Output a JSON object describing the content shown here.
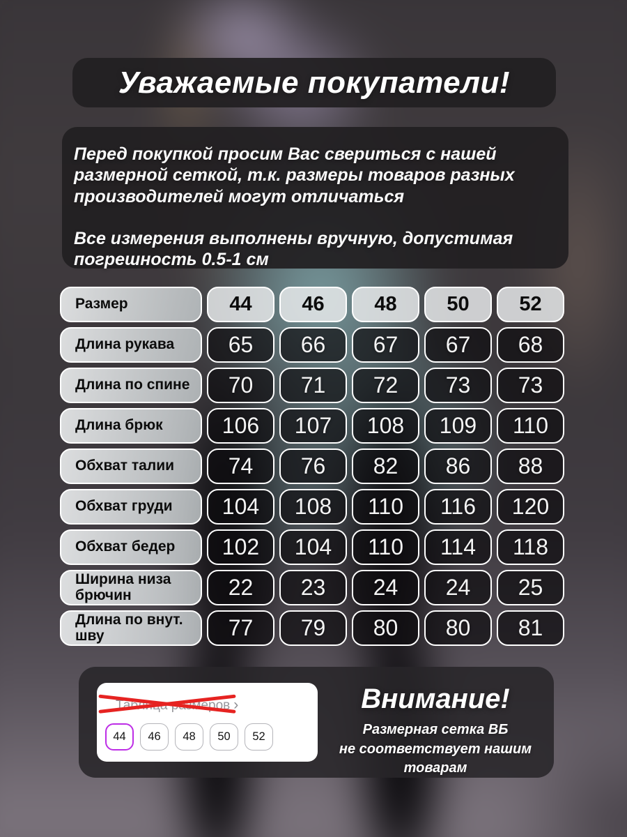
{
  "header": {
    "title": "Уважаемые покупатели!"
  },
  "notice": {
    "paragraph1_lines": [
      "Перед покупкой просим Вас свериться с нашей",
      "размерной сеткой, т.к. размеры товаров разных",
      "производителей могут отличаться"
    ],
    "paragraph2_lines": [
      "Все измерения выполнены вручную, допустимая",
      "погрешность 0.5-1 см"
    ]
  },
  "size_table": {
    "header_label": "Размер",
    "sizes": [
      "44",
      "46",
      "48",
      "50",
      "52"
    ],
    "rows": [
      {
        "label": "Длина рукава",
        "values": [
          "65",
          "66",
          "67",
          "67",
          "68"
        ]
      },
      {
        "label": "Длина по спине",
        "values": [
          "70",
          "71",
          "72",
          "73",
          "73"
        ]
      },
      {
        "label": "Длина брюк",
        "values": [
          "106",
          "107",
          "108",
          "109",
          "110"
        ]
      },
      {
        "label": "Обхват талии",
        "values": [
          "74",
          "76",
          "82",
          "86",
          "88"
        ]
      },
      {
        "label": "Обхват груди",
        "values": [
          "104",
          "108",
          "110",
          "116",
          "120"
        ]
      },
      {
        "label": "Обхват бедер",
        "values": [
          "102",
          "104",
          "110",
          "114",
          "118"
        ]
      },
      {
        "label": "Ширина низа брючин",
        "values": [
          "22",
          "23",
          "24",
          "24",
          "25"
        ]
      },
      {
        "label": "Длина по внут. шву",
        "values": [
          "77",
          "79",
          "80",
          "80",
          "81"
        ]
      }
    ]
  },
  "wb_card": {
    "link_label": "Таблица размеров",
    "chevron": "›",
    "chips": [
      "44",
      "46",
      "48",
      "50",
      "52"
    ],
    "selected_chip": "44"
  },
  "warning": {
    "title": "Внимание!",
    "line1": "Размерная сетка ВБ",
    "line2": "не соответствует нашим товарам"
  },
  "colors": {
    "accent_red": "#e62321",
    "chip_selected": "#bd2de6",
    "link_gray": "#97979c"
  }
}
